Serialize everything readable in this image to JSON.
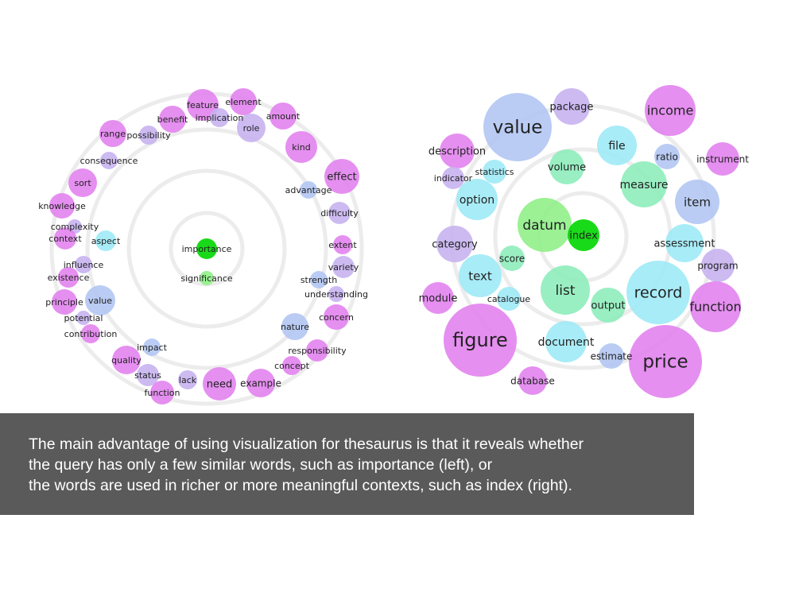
{
  "colors": {
    "pink": "#e283ee",
    "lavender": "#c7b3f0",
    "blue": "#b3c6f3",
    "cyan": "#9eeaf6",
    "mint": "#8eedbb",
    "green": "#00d600",
    "light_green": "#90ef88",
    "ring": "#ececec",
    "caption_bg": "#5a5a5a"
  },
  "left_graph": {
    "query": "importance",
    "words": [
      {
        "label": "importance",
        "color": "green"
      },
      {
        "label": "significance",
        "color": "light_green"
      },
      {
        "label": "feature",
        "color": "pink"
      },
      {
        "label": "element",
        "color": "pink"
      },
      {
        "label": "implication",
        "color": "lavender"
      },
      {
        "label": "amount",
        "color": "pink"
      },
      {
        "label": "benefit",
        "color": "pink"
      },
      {
        "label": "role",
        "color": "lavender"
      },
      {
        "label": "range",
        "color": "pink"
      },
      {
        "label": "possibility",
        "color": "lavender"
      },
      {
        "label": "kind",
        "color": "pink"
      },
      {
        "label": "consequence",
        "color": "lavender"
      },
      {
        "label": "effect",
        "color": "pink"
      },
      {
        "label": "sort",
        "color": "pink"
      },
      {
        "label": "advantage",
        "color": "blue"
      },
      {
        "label": "knowledge",
        "color": "pink"
      },
      {
        "label": "difficulty",
        "color": "lavender"
      },
      {
        "label": "complexity",
        "color": "lavender"
      },
      {
        "label": "context",
        "color": "pink"
      },
      {
        "label": "aspect",
        "color": "cyan"
      },
      {
        "label": "extent",
        "color": "pink"
      },
      {
        "label": "variety",
        "color": "lavender"
      },
      {
        "label": "influence",
        "color": "lavender"
      },
      {
        "label": "existence",
        "color": "pink"
      },
      {
        "label": "strength",
        "color": "blue"
      },
      {
        "label": "understanding",
        "color": "lavender"
      },
      {
        "label": "principle",
        "color": "pink"
      },
      {
        "label": "value",
        "color": "blue"
      },
      {
        "label": "concern",
        "color": "pink"
      },
      {
        "label": "potential",
        "color": "lavender"
      },
      {
        "label": "nature",
        "color": "blue"
      },
      {
        "label": "contribution",
        "color": "pink"
      },
      {
        "label": "responsibility",
        "color": "pink"
      },
      {
        "label": "impact",
        "color": "blue"
      },
      {
        "label": "quality",
        "color": "pink"
      },
      {
        "label": "concept",
        "color": "pink"
      },
      {
        "label": "status",
        "color": "lavender"
      },
      {
        "label": "lack",
        "color": "lavender"
      },
      {
        "label": "need",
        "color": "pink"
      },
      {
        "label": "example",
        "color": "pink"
      },
      {
        "label": "function",
        "color": "pink"
      }
    ]
  },
  "right_graph": {
    "query": "index",
    "words": [
      {
        "label": "value",
        "color": "blue"
      },
      {
        "label": "package",
        "color": "lavender"
      },
      {
        "label": "income",
        "color": "pink"
      },
      {
        "label": "description",
        "color": "pink"
      },
      {
        "label": "file",
        "color": "cyan"
      },
      {
        "label": "ratio",
        "color": "blue"
      },
      {
        "label": "instrument",
        "color": "pink"
      },
      {
        "label": "indicator",
        "color": "lavender"
      },
      {
        "label": "statistics",
        "color": "cyan"
      },
      {
        "label": "volume",
        "color": "mint"
      },
      {
        "label": "measure",
        "color": "mint"
      },
      {
        "label": "option",
        "color": "cyan"
      },
      {
        "label": "item",
        "color": "blue"
      },
      {
        "label": "datum",
        "color": "light_green"
      },
      {
        "label": "index",
        "color": "green"
      },
      {
        "label": "category",
        "color": "lavender"
      },
      {
        "label": "assessment",
        "color": "cyan"
      },
      {
        "label": "score",
        "color": "mint"
      },
      {
        "label": "program",
        "color": "lavender"
      },
      {
        "label": "text",
        "color": "cyan"
      },
      {
        "label": "list",
        "color": "mint"
      },
      {
        "label": "record",
        "color": "cyan"
      },
      {
        "label": "module",
        "color": "pink"
      },
      {
        "label": "catalogue",
        "color": "cyan"
      },
      {
        "label": "output",
        "color": "mint"
      },
      {
        "label": "function",
        "color": "pink"
      },
      {
        "label": "figure",
        "color": "pink"
      },
      {
        "label": "document",
        "color": "cyan"
      },
      {
        "label": "estimate",
        "color": "blue"
      },
      {
        "label": "price",
        "color": "pink"
      },
      {
        "label": "database",
        "color": "pink"
      }
    ]
  },
  "caption": {
    "line1": "The main advantage of using visualization for thesaurus is that it reveals whether",
    "line2": "the query has only a few similar words, such as importance (left), or",
    "line3": "the words are used in richer or more meaningful contexts, such as index (right)."
  }
}
